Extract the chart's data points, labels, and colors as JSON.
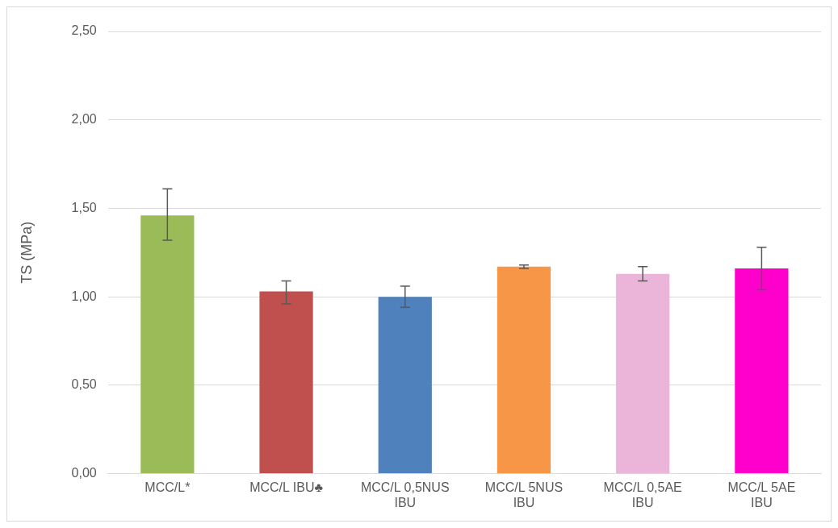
{
  "chart_data": {
    "type": "bar",
    "ylabel": "TS (MPa)",
    "categories": [
      "MCC/L*",
      "MCC/L IBU♣",
      "MCC/L 0,5NUS IBU",
      "MCC/L 5NUS IBU",
      "MCC/L 0,5AE IBU",
      "MCC/L 5AE IBU"
    ],
    "values": [
      1.46,
      1.03,
      1.0,
      1.17,
      1.13,
      1.16
    ],
    "colors": [
      "#9bbb59",
      "#c0504d",
      "#4f81bd",
      "#f79646",
      "#ebb5da",
      "#ff00cc"
    ],
    "errors": [
      [
        1.32,
        1.61
      ],
      [
        0.96,
        1.09
      ],
      [
        0.94,
        1.06
      ],
      [
        1.16,
        1.18
      ],
      [
        1.09,
        1.17
      ],
      [
        1.04,
        1.28
      ]
    ],
    "ylim": [
      0,
      2.5
    ],
    "yticks": [
      {
        "value": 0,
        "label": "0,00"
      },
      {
        "value": 0.5,
        "label": "0,50"
      },
      {
        "value": 1,
        "label": "1,00"
      },
      {
        "value": 1.5,
        "label": "1,50"
      },
      {
        "value": 2,
        "label": "2,00"
      },
      {
        "value": 2.5,
        "label": "2,50"
      }
    ],
    "grid": "y",
    "legend": false
  }
}
